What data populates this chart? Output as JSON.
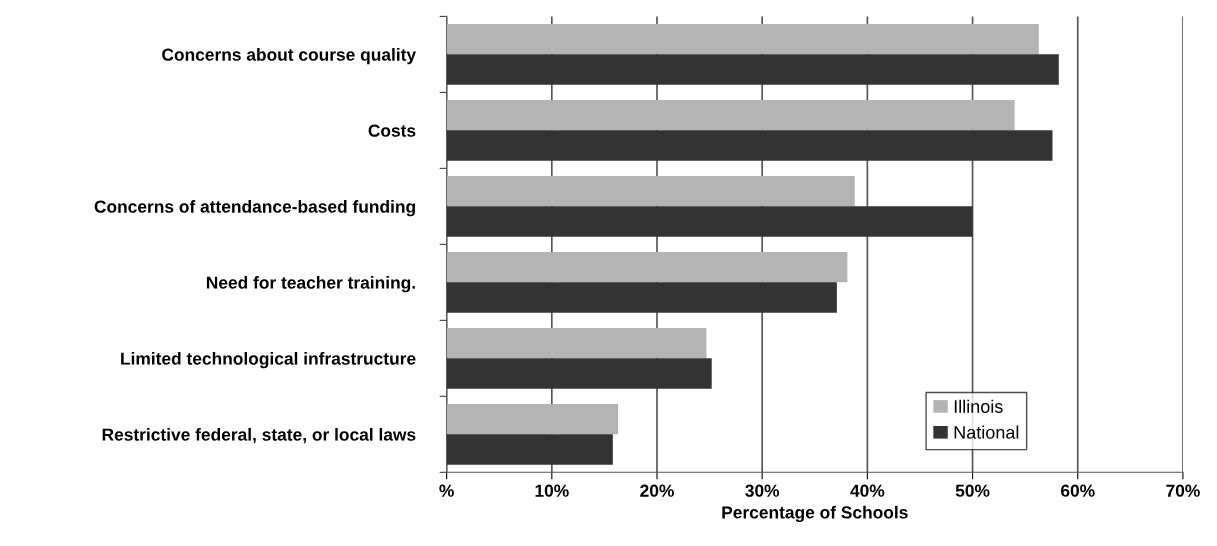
{
  "chart_data": {
    "type": "bar",
    "orientation": "horizontal",
    "xlabel": "Percentage of Schools",
    "categories": [
      "Concerns about course quality",
      "Costs",
      "Concerns of attendance-based funding",
      "Need for teacher training.",
      "Limited technological infrastructure",
      "Restrictive federal, state, or local laws"
    ],
    "series": [
      {
        "name": "Illinois",
        "color": "#b4b4b4",
        "values": [
          56.3,
          54.0,
          38.8,
          38.1,
          24.7,
          16.3
        ]
      },
      {
        "name": "National",
        "color": "#333333",
        "values": [
          58.2,
          57.6,
          50.0,
          37.1,
          25.2,
          15.8
        ]
      }
    ],
    "xlim": [
      0,
      70
    ],
    "xticks": [
      {
        "value": 0,
        "label": "%"
      },
      {
        "value": 10,
        "label": "10%"
      },
      {
        "value": 20,
        "label": "20%"
      },
      {
        "value": 30,
        "label": "30%"
      },
      {
        "value": 40,
        "label": "40%"
      },
      {
        "value": 50,
        "label": "50%"
      },
      {
        "value": 60,
        "label": "60%"
      },
      {
        "value": 70,
        "label": "70%"
      }
    ],
    "grid": "x",
    "legend": "bottom right"
  }
}
